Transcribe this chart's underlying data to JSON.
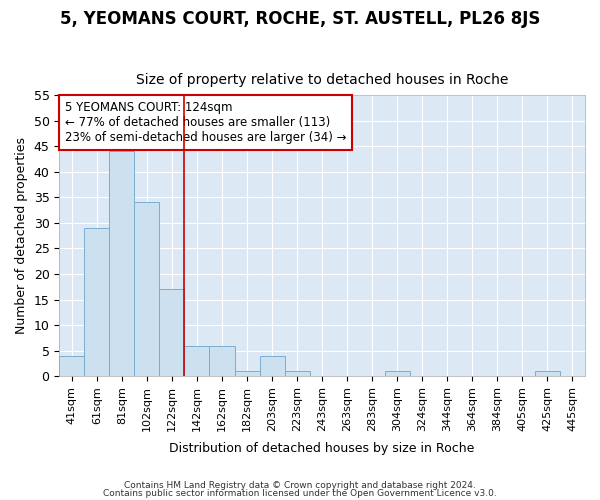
{
  "title1": "5, YEOMANS COURT, ROCHE, ST. AUSTELL, PL26 8JS",
  "title2": "Size of property relative to detached houses in Roche",
  "xlabel": "Distribution of detached houses by size in Roche",
  "ylabel": "Number of detached properties",
  "bin_labels": [
    "41sqm",
    "61sqm",
    "81sqm",
    "102sqm",
    "122sqm",
    "142sqm",
    "162sqm",
    "182sqm",
    "203sqm",
    "223sqm",
    "243sqm",
    "263sqm",
    "283sqm",
    "304sqm",
    "324sqm",
    "344sqm",
    "364sqm",
    "384sqm",
    "405sqm",
    "425sqm",
    "445sqm"
  ],
  "values": [
    4,
    29,
    44,
    34,
    17,
    6,
    6,
    1,
    4,
    1,
    0,
    0,
    0,
    1,
    0,
    0,
    0,
    0,
    0,
    1,
    0
  ],
  "bar_color": "#cce0f0",
  "bar_edge_color": "#7aadcf",
  "red_line_x": 4.5,
  "annotation_text": "5 YEOMANS COURT: 124sqm\n← 77% of detached houses are smaller (113)\n23% of semi-detached houses are larger (34) →",
  "annotation_box_color": "white",
  "annotation_box_edge_color": "#cc0000",
  "red_line_color": "#cc0000",
  "footer1": "Contains HM Land Registry data © Crown copyright and database right 2024.",
  "footer2": "Contains public sector information licensed under the Open Government Licence v3.0.",
  "ylim": [
    0,
    55
  ],
  "yticks": [
    0,
    5,
    10,
    15,
    20,
    25,
    30,
    35,
    40,
    45,
    50,
    55
  ],
  "plot_background": "#dce9f5",
  "title1_fontsize": 12,
  "title2_fontsize": 10,
  "grid_color": "white",
  "tick_label_fontsize": 8
}
